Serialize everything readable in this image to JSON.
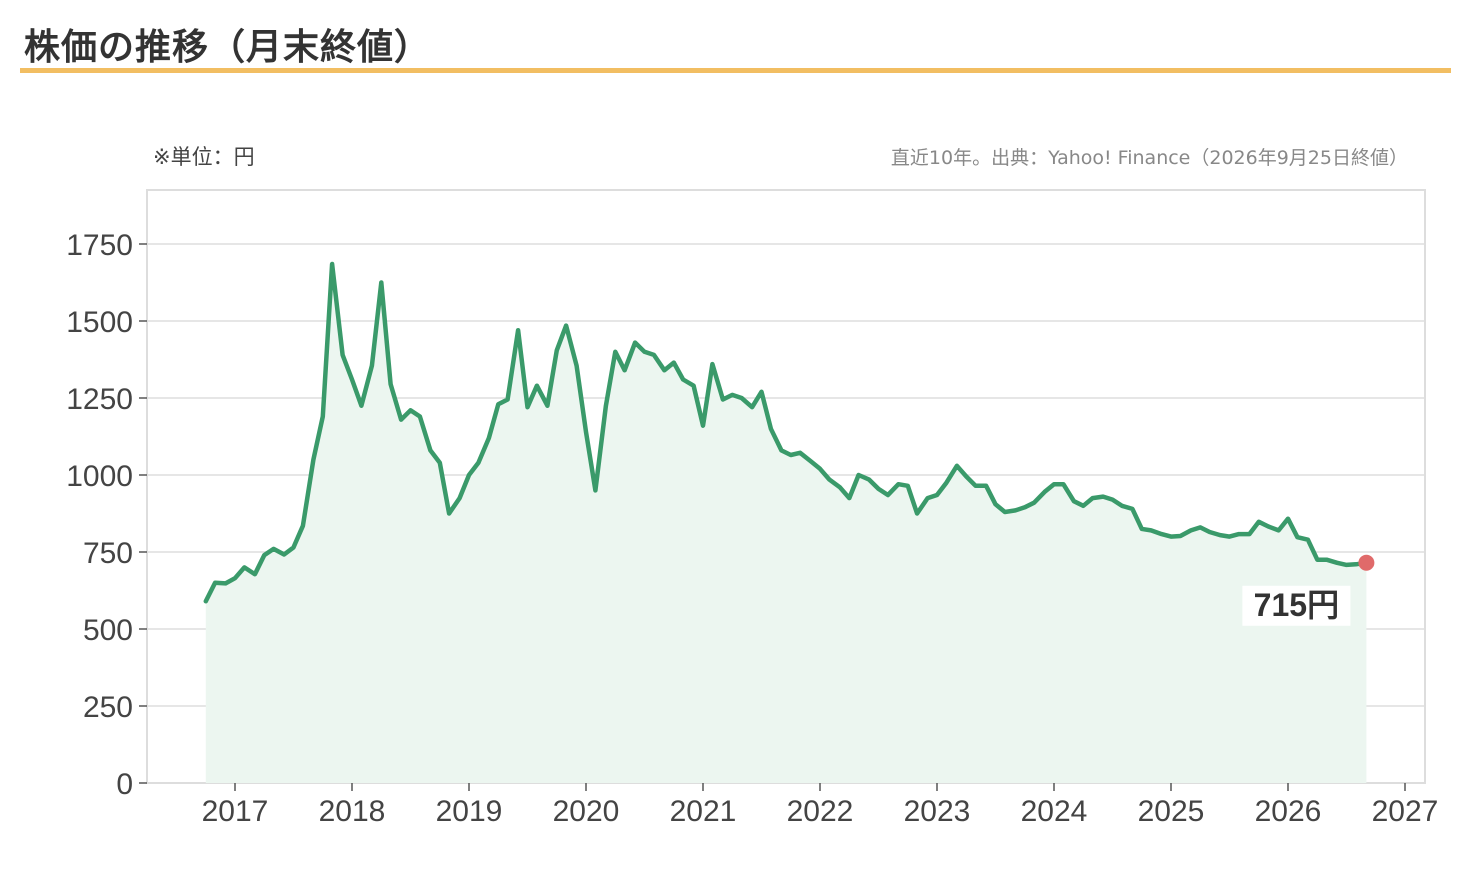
{
  "header": {
    "title": "株価の推移（月末終値）"
  },
  "notes": {
    "unit": "※単位：円",
    "source": "直近10年。出典：Yahoo! Finance（2026年9月25日終値）"
  },
  "colors": {
    "line": "#3a9a6a",
    "area": "#ecf6f0",
    "last_point": "#e06a6a",
    "accent": "#f2be62"
  },
  "chart_data": {
    "type": "area",
    "title": "",
    "xlabel": "",
    "ylabel": "",
    "ylim": [
      0,
      1900
    ],
    "xlim": [
      2016.55,
      2027.1
    ],
    "yticks": [
      0,
      250,
      500,
      750,
      1000,
      1250,
      1500,
      1750
    ],
    "xticks": [
      2017,
      2018,
      2019,
      2020,
      2021,
      2022,
      2023,
      2024,
      2025,
      2026,
      2027
    ],
    "grid": true,
    "last_label": "715円",
    "series": [
      {
        "x": [
          2016.75,
          2016.83,
          2016.92,
          2017.0,
          2017.08,
          2017.17,
          2017.25,
          2017.33,
          2017.42,
          2017.5,
          2017.58,
          2017.67,
          2017.75,
          2017.83,
          2017.92,
          2018.0,
          2018.08,
          2018.17,
          2018.25,
          2018.33,
          2018.42,
          2018.5,
          2018.58,
          2018.67,
          2018.75,
          2018.83,
          2018.92,
          2019.0,
          2019.08,
          2019.17,
          2019.25,
          2019.33,
          2019.42,
          2019.5,
          2019.58,
          2019.67,
          2019.75,
          2019.83,
          2019.92,
          2020.0,
          2020.08,
          2020.17,
          2020.25,
          2020.33,
          2020.42,
          2020.5,
          2020.58,
          2020.67,
          2020.75,
          2020.83,
          2020.92,
          2021.0,
          2021.08,
          2021.17,
          2021.25,
          2021.33,
          2021.42,
          2021.5,
          2021.58,
          2021.67,
          2021.75,
          2021.83,
          2021.92,
          2022.0,
          2022.08,
          2022.17,
          2022.25,
          2022.33,
          2022.42,
          2022.5,
          2022.58,
          2022.67,
          2022.75,
          2022.83,
          2022.92,
          2023.0,
          2023.08,
          2023.17,
          2023.25,
          2023.33,
          2023.42,
          2023.5,
          2023.58,
          2023.67,
          2023.75,
          2023.83,
          2023.92,
          2024.0,
          2024.08,
          2024.17,
          2024.25,
          2024.33,
          2024.42,
          2024.5,
          2024.58,
          2024.67,
          2024.75,
          2024.83,
          2024.92,
          2025.0,
          2025.08,
          2025.17,
          2025.25,
          2025.33,
          2025.42,
          2025.5,
          2025.58,
          2025.67,
          2025.75,
          2025.83,
          2025.92,
          2026.0,
          2026.08,
          2026.17,
          2026.25,
          2026.33,
          2026.42,
          2026.5,
          2026.58,
          2026.67
        ],
        "values": [
          590,
          650,
          648,
          665,
          700,
          678,
          740,
          760,
          742,
          765,
          835,
          1050,
          1190,
          1685,
          1390,
          1310,
          1225,
          1355,
          1625,
          1295,
          1180,
          1210,
          1190,
          1080,
          1040,
          875,
          925,
          1000,
          1040,
          1120,
          1230,
          1245,
          1470,
          1220,
          1290,
          1225,
          1405,
          1485,
          1355,
          1140,
          950,
          1225,
          1400,
          1340,
          1430,
          1400,
          1390,
          1340,
          1365,
          1310,
          1290,
          1160,
          1360,
          1245,
          1260,
          1250,
          1220,
          1270,
          1150,
          1080,
          1065,
          1072,
          1045,
          1020,
          985,
          960,
          925,
          1000,
          985,
          955,
          935,
          970,
          965,
          875,
          925,
          935,
          975,
          1030,
          995,
          965,
          965,
          905,
          880,
          885,
          895,
          910,
          945,
          970,
          970,
          915,
          900,
          925,
          930,
          920,
          900,
          890,
          825,
          820,
          808,
          800,
          802,
          820,
          830,
          815,
          805,
          800,
          808,
          808,
          848,
          833,
          820,
          858,
          798,
          790,
          725,
          725,
          715,
          708,
          710,
          715
        ]
      }
    ]
  }
}
